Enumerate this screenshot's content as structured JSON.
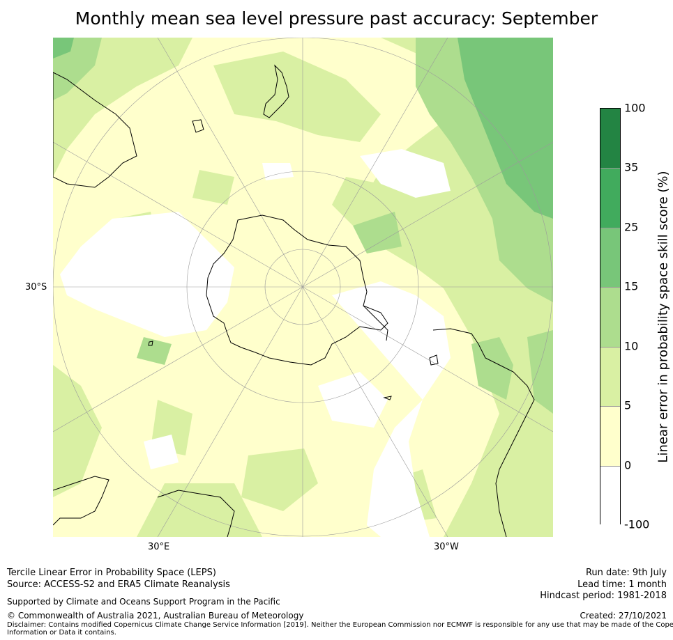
{
  "title": "Monthly mean sea level pressure past accuracy: September",
  "map": {
    "projection": "south-polar-stereographic",
    "lat_labels": [
      "30°S"
    ],
    "lon_labels": [
      "30°E",
      "30°W"
    ],
    "colors": {
      "land_outline": "#000000",
      "graticule": "#9a9a9a"
    }
  },
  "colorbar": {
    "label": "Linear error in probability space skill score (%)",
    "ticks": [
      "100",
      "35",
      "25",
      "15",
      "10",
      "5",
      "0",
      "-100"
    ],
    "bins": [
      {
        "from": -100,
        "to": 0,
        "color": "#ffffff"
      },
      {
        "from": 0,
        "to": 5,
        "color": "#ffffcc"
      },
      {
        "from": 5,
        "to": 10,
        "color": "#d9f0a3"
      },
      {
        "from": 10,
        "to": 15,
        "color": "#addd8e"
      },
      {
        "from": 15,
        "to": 25,
        "color": "#78c679"
      },
      {
        "from": 25,
        "to": 35,
        "color": "#41ab5d"
      },
      {
        "from": 35,
        "to": 100,
        "color": "#238443"
      }
    ]
  },
  "footer": {
    "method": "Tercile Linear Error in Probability Space (LEPS)",
    "source": "Source: ACCESS-S2 and ERA5 Climate Reanalysis",
    "support": "Supported by Climate and Oceans Support Program in the Pacific",
    "copyright": "© Commonwealth of Australia 2021, Australian Bureau of Meteorology",
    "disclaimer_1": "Disclaimer: Contains modified Copernicus Climate Change Service Information [2019]. Neither the European Commission nor ECMWF is responsible for any use that may be made of the Copernicus",
    "disclaimer_2": "Information or Data it contains.",
    "run_date": "Run date: 9th July",
    "lead_time": "Lead time: 1 month",
    "hindcast": "Hindcast period: 1981-2018",
    "created": "Created: 27/10/2021"
  }
}
